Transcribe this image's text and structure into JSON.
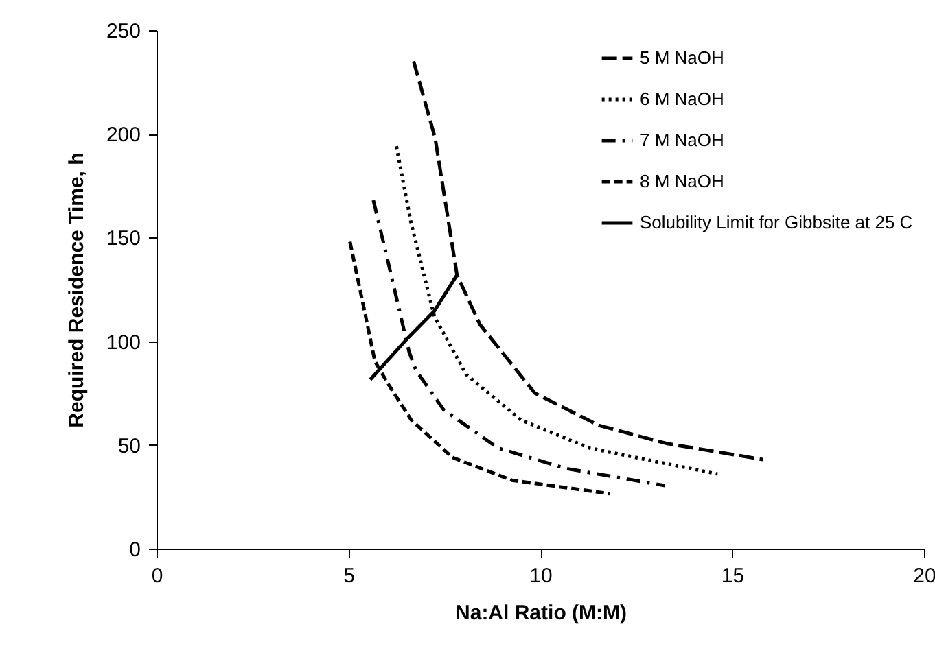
{
  "chart_data": {
    "type": "line",
    "xlabel": "Na:Al Ratio (M:M)",
    "ylabel": "Required Residence Time, h",
    "xlim": [
      0,
      20
    ],
    "xticks": [
      0,
      5,
      10,
      15,
      20
    ],
    "ylim": [
      0,
      250
    ],
    "yticks": [
      0,
      50,
      100,
      150,
      200,
      250
    ],
    "grid": false,
    "legend": "top right",
    "marker": "none",
    "series": [
      {
        "name": "5 M NaOH",
        "color": "#000000",
        "line_style": "longdash",
        "x": [
          6.7,
          7.26,
          7.83,
          8.43,
          9.86,
          11.52,
          13.3,
          15.8
        ],
        "values": [
          235,
          198,
          132,
          108,
          75,
          59.5,
          50.7,
          43
        ]
      },
      {
        "name": "6 M NaOH",
        "color": "#000000",
        "line_style": "dotted",
        "x": [
          6.25,
          6.64,
          7.24,
          8.07,
          9.5,
          11.29,
          14.62
        ],
        "values": [
          194,
          156.5,
          112,
          84,
          62,
          48.5,
          36
        ]
      },
      {
        "name": "7 M NaOH",
        "color": "#000000",
        "line_style": "dashdot",
        "x": [
          5.65,
          6.05,
          6.58,
          6.76,
          7.48,
          8.9,
          10.69,
          13.25
        ],
        "values": [
          168,
          137,
          95,
          86,
          67,
          48.5,
          38.6,
          30.4
        ]
      },
      {
        "name": "8 M NaOH",
        "color": "#000000",
        "line_style": "dashed",
        "x": [
          5.04,
          5.45,
          5.69,
          6.05,
          6.64,
          7.71,
          9.26,
          11.82
        ],
        "values": [
          148,
          112,
          90.4,
          79,
          62,
          44,
          33,
          26.5
        ]
      },
      {
        "name": "Solubility Limit for Gibbsite at 25 C",
        "color": "#000000",
        "line_style": "solid",
        "x": [
          5.57,
          6.52,
          7.24,
          7.83
        ],
        "values": [
          81.5,
          101,
          114.6,
          132
        ]
      }
    ]
  }
}
